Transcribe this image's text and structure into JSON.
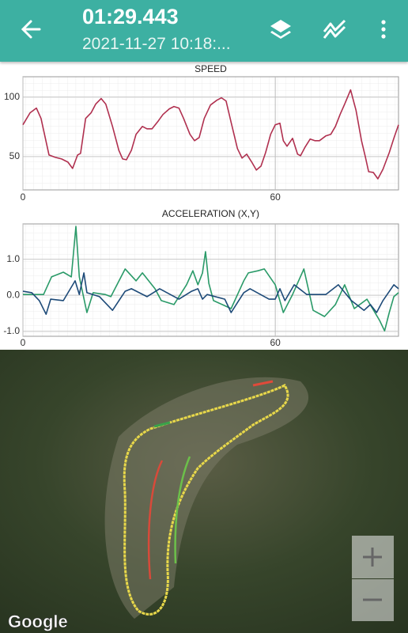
{
  "header": {
    "title": "01:29.443",
    "subtitle": "2021-11-27 10:18:..."
  },
  "chart_data": [
    {
      "type": "line",
      "title": "SPEED",
      "grid": true,
      "xlim": [
        0,
        89.3
      ],
      "ylim": [
        22,
        117
      ],
      "xticks": [
        0,
        60
      ],
      "yticks": [
        50,
        100
      ],
      "series": [
        {
          "color": "#b0304f",
          "x": [
            0,
            1.7,
            3.2,
            4.3,
            6.2,
            7.7,
            9.2,
            10.7,
            11.8,
            13.0,
            13.7,
            14.9,
            16.2,
            17.3,
            18.6,
            19.7,
            21.3,
            22.8,
            23.7,
            24.6,
            25.8,
            26.9,
            28.4,
            29.5,
            30.7,
            32.2,
            33.3,
            34.8,
            35.9,
            37.1,
            38.2,
            39.7,
            40.8,
            41.9,
            43.1,
            44.6,
            46.1,
            47.2,
            48.3,
            49.5,
            51.0,
            52.1,
            53.2,
            54.4,
            55.5,
            56.6,
            57.7,
            58.9,
            60.0,
            61.1,
            61.9,
            62.8,
            64.1,
            65.3,
            66.0,
            67.1,
            68.3,
            69.4,
            70.5,
            72.0,
            73.2,
            74.3,
            75.4,
            76.5,
            77.9,
            79.2,
            80.5,
            81.4,
            82.2,
            83.3,
            84.4,
            85.6,
            87.1,
            88.2,
            89.3
          ],
          "values": [
            76.7,
            86.7,
            90.7,
            82,
            51.3,
            49.3,
            48,
            45.3,
            40,
            51.3,
            52.7,
            82,
            86.7,
            94,
            98.7,
            94,
            75.3,
            55.3,
            48,
            47.3,
            55.3,
            68.7,
            75.3,
            73.3,
            73.3,
            80,
            85.3,
            90,
            92,
            90.7,
            82,
            68.7,
            63.3,
            66,
            82,
            93.3,
            97.3,
            99.3,
            96.7,
            78.7,
            56.7,
            48.7,
            52,
            45.3,
            38.7,
            42,
            53.3,
            68.7,
            76.7,
            78,
            63.3,
            58.7,
            65.3,
            52,
            50.7,
            58,
            64.7,
            63.3,
            63.3,
            67.3,
            68.7,
            75.3,
            85.3,
            94,
            106,
            88.7,
            63.3,
            50,
            37.3,
            36.7,
            31.3,
            39.3,
            53.3,
            65.3,
            76.7
          ]
        }
      ]
    },
    {
      "type": "line",
      "title": "ACCELERATION (X,Y)",
      "grid": true,
      "xlim": [
        0,
        89.3
      ],
      "ylim": [
        -1.14,
        1.98
      ],
      "xticks": [
        0,
        60
      ],
      "yticks": [
        {
          "value": 1,
          "label": "1.0"
        },
        {
          "value": 0,
          "label": "0.0"
        },
        {
          "value": -1,
          "label": "-1.0"
        }
      ],
      "series": [
        {
          "color": "#2a9a68",
          "x": [
            0,
            4.9,
            6.8,
            9.6,
            11.5,
            12.6,
            13.4,
            15.2,
            16.7,
            19.6,
            20.9,
            24.3,
            26.9,
            28.4,
            31.4,
            32.9,
            35.9,
            38.9,
            40.4,
            41.6,
            42.7,
            43.4,
            44.2,
            45.3,
            49.5,
            52.5,
            53.6,
            55.9,
            57.4,
            60.0,
            61.9,
            64.1,
            66.8,
            69.0,
            71.7,
            74.3,
            76.5,
            78.8,
            81.8,
            84.8,
            86.0,
            87.1,
            88.2,
            89.3
          ],
          "values": [
            0.02,
            0.02,
            0.51,
            0.64,
            0.51,
            1.91,
            0.51,
            -0.48,
            0.07,
            0.02,
            -0.04,
            0.73,
            0.4,
            0.62,
            0.18,
            -0.15,
            -0.26,
            0.29,
            0.68,
            0.29,
            0.62,
            1.21,
            0.33,
            -0.15,
            -0.37,
            0.4,
            0.62,
            0.68,
            0.73,
            0.29,
            -0.48,
            0.02,
            0.73,
            -0.42,
            -0.59,
            -0.26,
            0.29,
            -0.37,
            -0.11,
            -0.7,
            -0.99,
            -0.48,
            -0.04,
            0.07
          ]
        },
        {
          "color": "#1d4a78",
          "x": [
            0,
            2.1,
            3.9,
            5.5,
            6.6,
            9.6,
            12.4,
            13.4,
            14.5,
            15.2,
            18.2,
            21.3,
            24.3,
            25.8,
            29.5,
            32.5,
            37.1,
            40.1,
            41.6,
            42.7,
            43.8,
            48.0,
            49.5,
            52.5,
            54.0,
            58.5,
            60.0,
            61.1,
            62.3,
            64.5,
            67.5,
            72.0,
            75.0,
            78.1,
            81.1,
            82.6,
            84.1,
            85.6,
            88.2,
            89.3
          ],
          "values": [
            0.11,
            0.07,
            -0.15,
            -0.53,
            -0.11,
            -0.15,
            0.4,
            0.02,
            0.62,
            0.07,
            -0.04,
            -0.42,
            0.11,
            0.18,
            -0.04,
            0.18,
            -0.11,
            0.11,
            0.18,
            -0.11,
            0.02,
            -0.11,
            -0.48,
            0.07,
            0.18,
            -0.11,
            -0.11,
            0.18,
            -0.15,
            0.29,
            0.02,
            0.02,
            0.29,
            -0.15,
            -0.42,
            -0.26,
            -0.48,
            -0.15,
            0.29,
            0.18
          ]
        }
      ]
    }
  ],
  "map": {
    "attribution": "Google"
  }
}
